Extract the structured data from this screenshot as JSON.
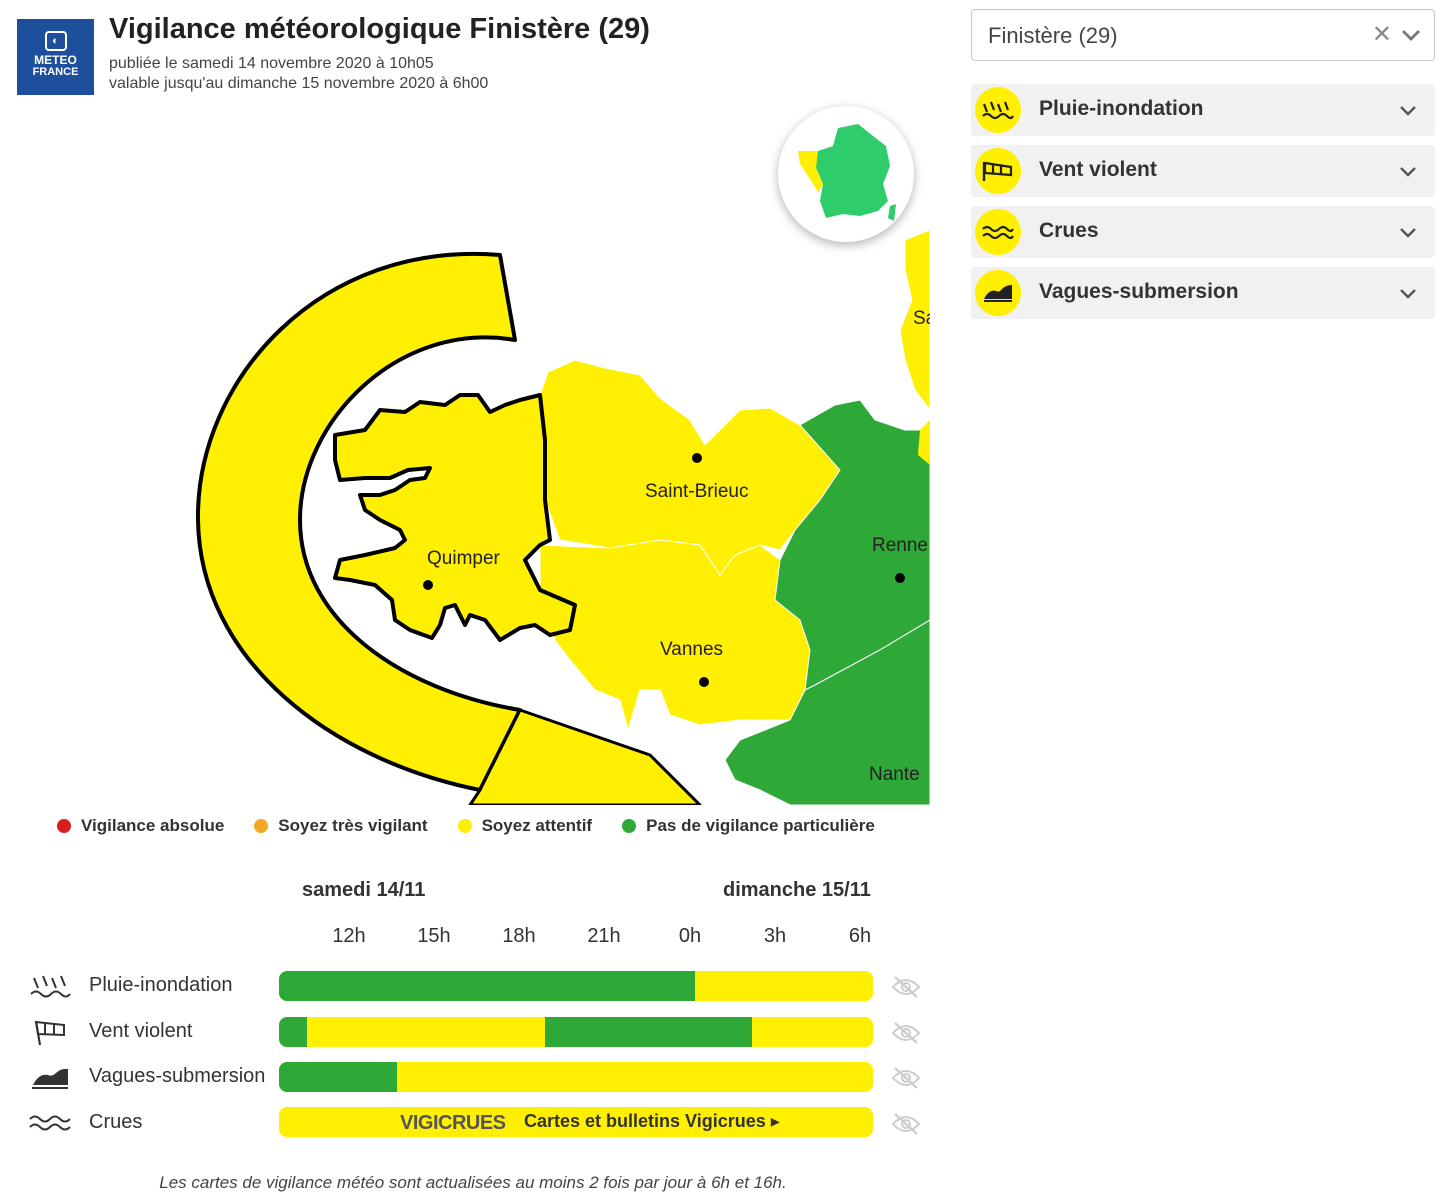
{
  "header": {
    "logo_line1": "METEO",
    "logo_line2": "FRANCE",
    "title": "Vigilance météorologique Finistère (29)",
    "published": "publiée le samedi 14 novembre 2020 à 10h05",
    "valid_until": "valable jusqu'au dimanche 15 novembre 2020 à 6h00"
  },
  "map": {
    "cities": [
      "Quimper",
      "Saint-Brieuc",
      "Vannes",
      "Renne",
      "Nante",
      "Sa"
    ],
    "colors": {
      "yellow": "#ffef00",
      "green": "#2ea836",
      "outline": "#000000"
    }
  },
  "department_select": {
    "value": "Finistère (29)",
    "clear_icon": "close-icon",
    "chevron_icon": "chevron-down-icon"
  },
  "phenomena": [
    {
      "label": "Pluie-inondation",
      "icon": "rain-flood-icon",
      "level": "yellow"
    },
    {
      "label": "Vent violent",
      "icon": "wind-icon",
      "level": "yellow"
    },
    {
      "label": "Crues",
      "icon": "flood-waves-icon",
      "level": "yellow"
    },
    {
      "label": "Vagues-submersion",
      "icon": "waves-submersion-icon",
      "level": "yellow"
    }
  ],
  "legend": [
    {
      "label": "Vigilance absolue",
      "color": "#d62020"
    },
    {
      "label": "Soyez très vigilant",
      "color": "#f5a623"
    },
    {
      "label": "Soyez attentif",
      "color": "#ffef00"
    },
    {
      "label": "Pas de vigilance particulière",
      "color": "#2ea836"
    }
  ],
  "timeline": {
    "day1": "samedi 14/11",
    "day2": "dimanche 15/11",
    "hours": [
      "12h",
      "15h",
      "18h",
      "21h",
      "0h",
      "3h",
      "6h"
    ],
    "rows": [
      {
        "label": "Pluie-inondation",
        "icon": "rain-flood-icon",
        "segments": [
          {
            "level": "green",
            "fraction": 0.7
          },
          {
            "level": "yellow",
            "fraction": 0.3
          }
        ]
      },
      {
        "label": "Vent violent",
        "icon": "wind-icon",
        "segments": [
          {
            "level": "green",
            "fraction": 0.047
          },
          {
            "level": "yellow",
            "fraction": 0.4
          },
          {
            "level": "green",
            "fraction": 0.35
          },
          {
            "level": "yellow",
            "fraction": 0.203
          }
        ]
      },
      {
        "label": "Vagues-submersion",
        "icon": "waves-submersion-icon",
        "segments": [
          {
            "level": "green",
            "fraction": 0.199
          },
          {
            "level": "yellow",
            "fraction": 0.801
          }
        ]
      },
      {
        "label": "Crues",
        "icon": "flood-waves-icon",
        "segments": []
      }
    ],
    "vigicrues_brand": "VIGICRUES",
    "vigicrues_link": "Cartes et bulletins Vigicrues ▸",
    "hide_icon": "eye-slash-icon"
  },
  "footnote": "Les cartes de vigilance météo sont actualisées au moins 2 fois par jour à 6h et 16h."
}
